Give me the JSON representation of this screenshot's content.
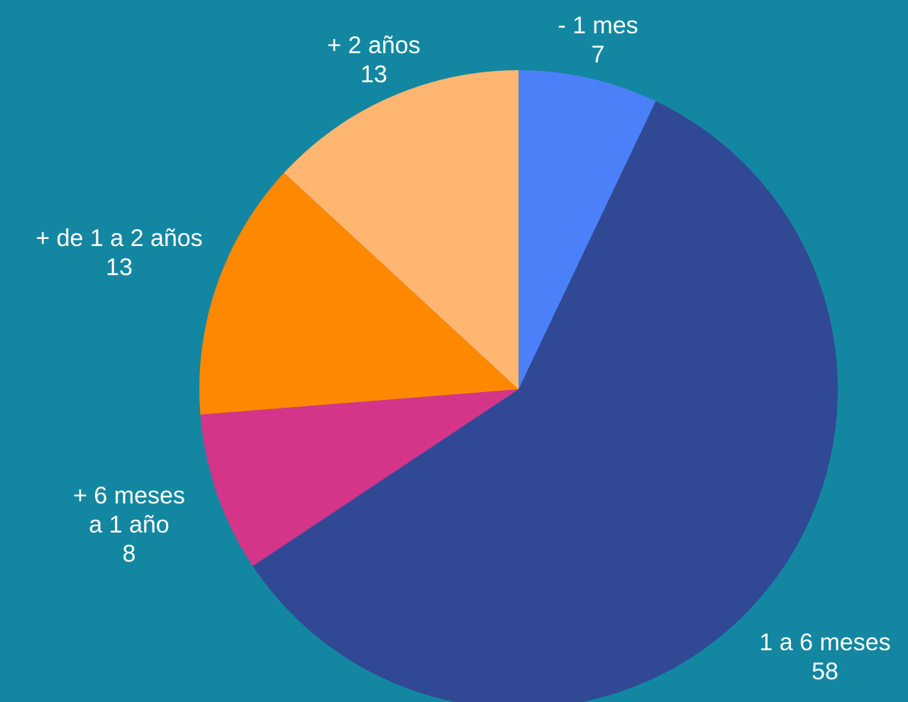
{
  "chart_data": {
    "type": "pie",
    "title": "",
    "background": "#1387a1",
    "start_angle_deg": 0,
    "direction": "clockwise",
    "slices": [
      {
        "label_lines": [
          "- 1 mes"
        ],
        "value": 7,
        "value_label": "7",
        "color": "#4b80f8"
      },
      {
        "label_lines": [
          "1 a 6 meses"
        ],
        "value": 58,
        "value_label": "58",
        "color": "#314895"
      },
      {
        "label_lines": [
          "+ 6 meses",
          "a 1 año"
        ],
        "value": 8,
        "value_label": "8",
        "color": "#d43588"
      },
      {
        "label_lines": [
          "+ de 1 a 2 años"
        ],
        "value": 13,
        "value_label": "13",
        "color": "#fe8800"
      },
      {
        "label_lines": [
          "+ 2 años"
        ],
        "value": 13,
        "value_label": "13",
        "color": "#ffb671"
      }
    ]
  }
}
